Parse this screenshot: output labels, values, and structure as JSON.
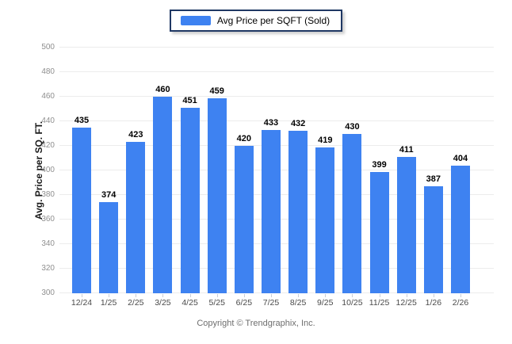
{
  "chart_data": {
    "type": "bar",
    "legend": "Avg Price per SQFT (Sold)",
    "categories": [
      "12/24",
      "1/25",
      "2/25",
      "3/25",
      "4/25",
      "5/25",
      "6/25",
      "7/25",
      "8/25",
      "9/25",
      "10/25",
      "11/25",
      "12/25",
      "1/26",
      "2/26"
    ],
    "values": [
      435,
      374,
      423,
      460,
      451,
      459,
      420,
      433,
      432,
      419,
      430,
      399,
      411,
      387,
      404
    ],
    "title": "",
    "xlabel": "",
    "ylabel": "Avg. Price per SQ. FT.",
    "ylim": [
      300,
      500
    ],
    "y_ticks": [
      300,
      320,
      340,
      360,
      380,
      400,
      420,
      440,
      460,
      480,
      500
    ],
    "grid": "horizontal",
    "legend_position": "top-center",
    "value_labels_shown": true
  },
  "colors": {
    "bar": "#3E82F1",
    "legend_border": "#1F3864",
    "gridline": "#ececec",
    "y_tick_text": "#8f8f8f",
    "x_tick_text": "#4a4a4a",
    "value_label_text": "#000000"
  },
  "footer": {
    "copyright": "Copyright © Trendgraphix, Inc."
  }
}
